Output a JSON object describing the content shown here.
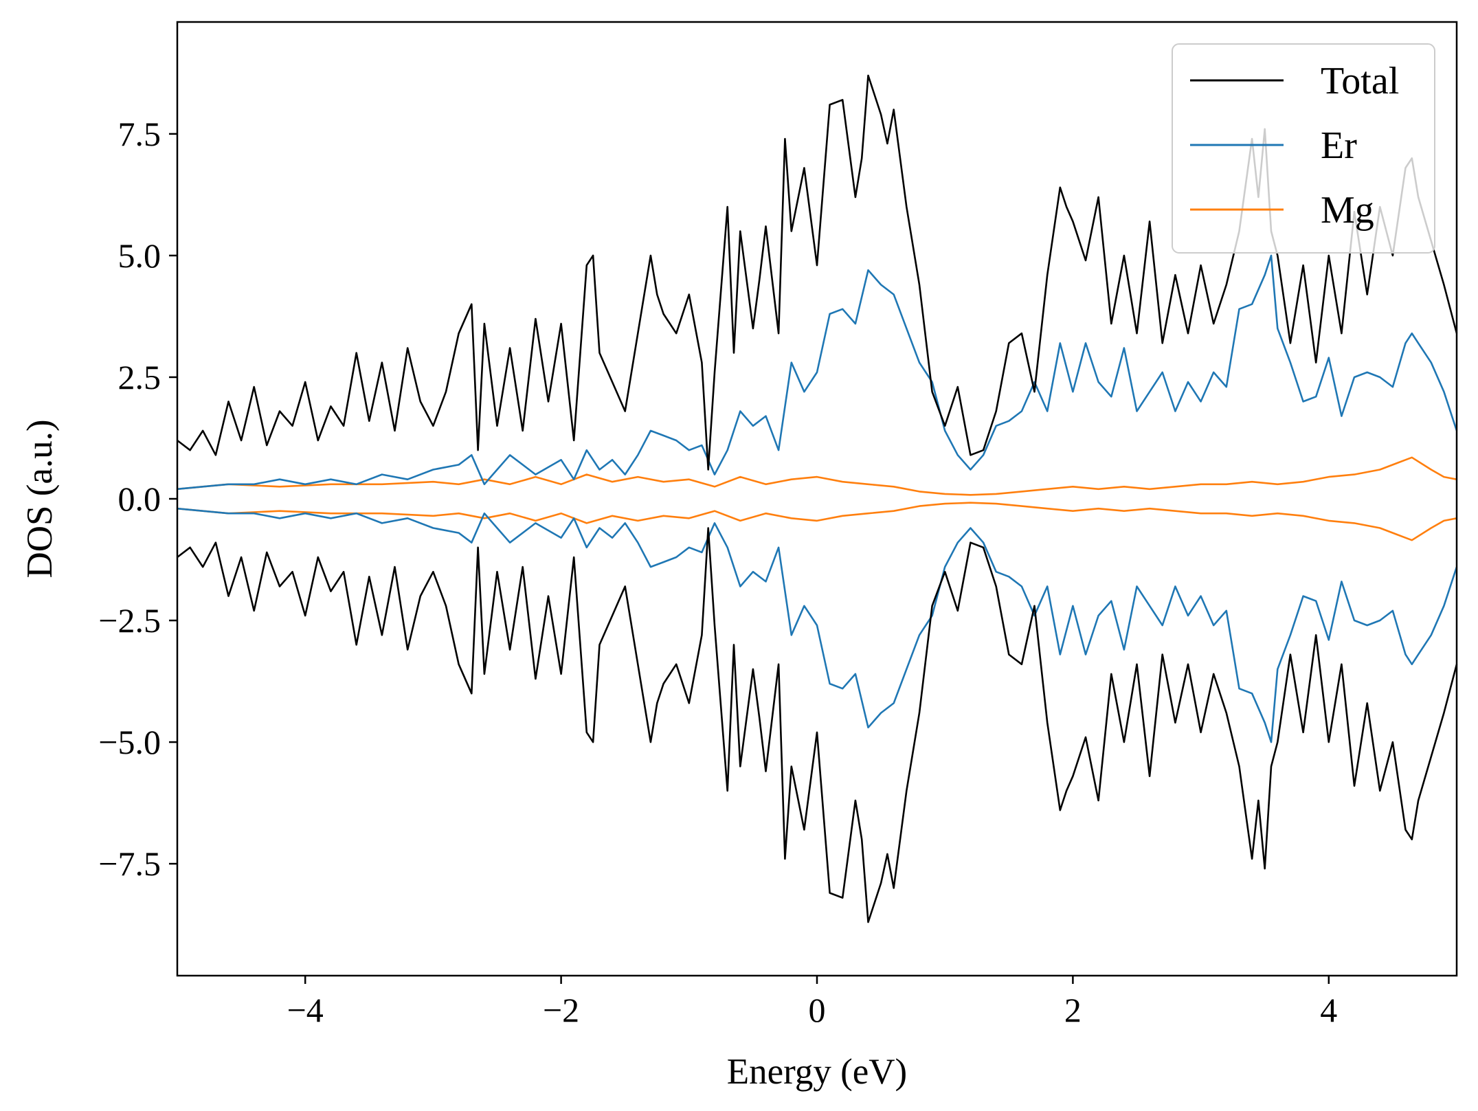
{
  "chart_data": {
    "type": "line",
    "xlabel": "Energy (eV)",
    "ylabel": "DOS (a.u.)",
    "xlim": [
      -5,
      5
    ],
    "ylim": [
      -9.8,
      9.8
    ],
    "xticks": [
      -4,
      -2,
      0,
      2,
      4
    ],
    "xtick_labels": [
      "−4",
      "−2",
      "0",
      "2",
      "4"
    ],
    "yticks": [
      -7.5,
      -5.0,
      -2.5,
      0.0,
      2.5,
      5.0,
      7.5
    ],
    "ytick_labels": [
      "−7.5",
      "−5.0",
      "−2.5",
      "0.0",
      "2.5",
      "5.0",
      "7.5"
    ],
    "grid": false,
    "legend_position": "top-right",
    "mirrored_spin_down": true,
    "series": [
      {
        "name": "Total",
        "color": "#000000",
        "x": [
          -5.0,
          -4.9,
          -4.8,
          -4.7,
          -4.6,
          -4.5,
          -4.4,
          -4.3,
          -4.2,
          -4.1,
          -4.0,
          -3.9,
          -3.8,
          -3.7,
          -3.6,
          -3.5,
          -3.4,
          -3.3,
          -3.2,
          -3.1,
          -3.0,
          -2.9,
          -2.8,
          -2.7,
          -2.65,
          -2.6,
          -2.5,
          -2.4,
          -2.3,
          -2.2,
          -2.1,
          -2.0,
          -1.9,
          -1.8,
          -1.75,
          -1.7,
          -1.6,
          -1.5,
          -1.4,
          -1.3,
          -1.25,
          -1.2,
          -1.1,
          -1.0,
          -0.9,
          -0.85,
          -0.8,
          -0.7,
          -0.65,
          -0.6,
          -0.5,
          -0.45,
          -0.4,
          -0.3,
          -0.25,
          -0.2,
          -0.1,
          0.0,
          0.1,
          0.2,
          0.3,
          0.35,
          0.4,
          0.5,
          0.55,
          0.6,
          0.7,
          0.8,
          0.9,
          1.0,
          1.1,
          1.2,
          1.3,
          1.4,
          1.5,
          1.6,
          1.7,
          1.8,
          1.9,
          1.95,
          2.0,
          2.1,
          2.2,
          2.3,
          2.4,
          2.5,
          2.6,
          2.7,
          2.8,
          2.9,
          3.0,
          3.1,
          3.2,
          3.3,
          3.4,
          3.45,
          3.5,
          3.55,
          3.6,
          3.7,
          3.8,
          3.9,
          4.0,
          4.1,
          4.2,
          4.3,
          4.4,
          4.5,
          4.6,
          4.65,
          4.7,
          4.8,
          4.9,
          5.0
        ],
        "y": [
          1.2,
          1.0,
          1.4,
          0.9,
          2.0,
          1.2,
          2.3,
          1.1,
          1.8,
          1.5,
          2.4,
          1.2,
          1.9,
          1.5,
          3.0,
          1.6,
          2.8,
          1.4,
          3.1,
          2.0,
          1.5,
          2.2,
          3.4,
          4.0,
          1.0,
          3.6,
          1.5,
          3.1,
          1.4,
          3.7,
          2.0,
          3.6,
          1.2,
          4.8,
          5.0,
          3.0,
          2.4,
          1.8,
          3.4,
          5.0,
          4.2,
          3.8,
          3.4,
          4.2,
          2.8,
          0.6,
          2.6,
          6.0,
          3.0,
          5.5,
          3.5,
          4.5,
          5.6,
          3.4,
          7.4,
          5.5,
          6.8,
          4.8,
          8.1,
          8.2,
          6.2,
          7.0,
          8.7,
          7.9,
          7.3,
          8.0,
          6.0,
          4.4,
          2.2,
          1.5,
          2.3,
          0.9,
          1.0,
          1.8,
          3.2,
          3.4,
          2.2,
          4.6,
          6.4,
          6.0,
          5.7,
          4.9,
          6.2,
          3.6,
          5.0,
          3.4,
          5.7,
          3.2,
          4.6,
          3.4,
          4.8,
          3.6,
          4.4,
          5.5,
          7.4,
          6.2,
          7.6,
          5.5,
          5.0,
          3.2,
          4.8,
          2.8,
          5.0,
          3.4,
          5.9,
          4.2,
          6.0,
          5.0,
          6.8,
          7.0,
          6.2,
          5.3,
          4.4,
          3.4
        ]
      },
      {
        "name": "Er",
        "color": "#1f77b4",
        "x": [
          -5.0,
          -4.8,
          -4.6,
          -4.4,
          -4.2,
          -4.0,
          -3.8,
          -3.6,
          -3.4,
          -3.2,
          -3.0,
          -2.8,
          -2.7,
          -2.6,
          -2.5,
          -2.4,
          -2.2,
          -2.0,
          -1.9,
          -1.8,
          -1.7,
          -1.6,
          -1.5,
          -1.4,
          -1.3,
          -1.2,
          -1.1,
          -1.0,
          -0.9,
          -0.8,
          -0.7,
          -0.6,
          -0.5,
          -0.4,
          -0.3,
          -0.2,
          -0.1,
          0.0,
          0.1,
          0.2,
          0.3,
          0.4,
          0.5,
          0.6,
          0.7,
          0.8,
          0.9,
          1.0,
          1.1,
          1.2,
          1.3,
          1.4,
          1.5,
          1.6,
          1.7,
          1.8,
          1.9,
          2.0,
          2.1,
          2.2,
          2.3,
          2.4,
          2.5,
          2.6,
          2.7,
          2.8,
          2.9,
          3.0,
          3.1,
          3.2,
          3.3,
          3.4,
          3.5,
          3.55,
          3.6,
          3.7,
          3.8,
          3.9,
          4.0,
          4.1,
          4.2,
          4.3,
          4.4,
          4.5,
          4.6,
          4.65,
          4.7,
          4.8,
          4.9,
          5.0
        ],
        "y": [
          0.2,
          0.25,
          0.3,
          0.3,
          0.4,
          0.3,
          0.4,
          0.3,
          0.5,
          0.4,
          0.6,
          0.7,
          0.9,
          0.3,
          0.6,
          0.9,
          0.5,
          0.8,
          0.4,
          1.0,
          0.6,
          0.8,
          0.5,
          0.9,
          1.4,
          1.3,
          1.2,
          1.0,
          1.1,
          0.5,
          1.0,
          1.8,
          1.5,
          1.7,
          1.0,
          2.8,
          2.2,
          2.6,
          3.8,
          3.9,
          3.6,
          4.7,
          4.4,
          4.2,
          3.5,
          2.8,
          2.4,
          1.4,
          0.9,
          0.6,
          0.9,
          1.5,
          1.6,
          1.8,
          2.4,
          1.8,
          3.2,
          2.2,
          3.2,
          2.4,
          2.1,
          3.1,
          1.8,
          2.2,
          2.6,
          1.8,
          2.4,
          2.0,
          2.6,
          2.3,
          3.9,
          4.0,
          4.6,
          5.0,
          3.5,
          2.8,
          2.0,
          2.1,
          2.9,
          1.7,
          2.5,
          2.6,
          2.5,
          2.3,
          3.2,
          3.4,
          3.2,
          2.8,
          2.2,
          1.4
        ]
      },
      {
        "name": "Mg",
        "color": "#ff7f0e",
        "x": [
          -5.0,
          -4.6,
          -4.2,
          -3.8,
          -3.4,
          -3.0,
          -2.8,
          -2.6,
          -2.4,
          -2.2,
          -2.0,
          -1.8,
          -1.6,
          -1.4,
          -1.2,
          -1.0,
          -0.8,
          -0.6,
          -0.4,
          -0.2,
          0.0,
          0.2,
          0.4,
          0.6,
          0.8,
          1.0,
          1.2,
          1.4,
          1.6,
          1.8,
          2.0,
          2.2,
          2.4,
          2.6,
          2.8,
          3.0,
          3.2,
          3.4,
          3.6,
          3.8,
          4.0,
          4.2,
          4.4,
          4.6,
          4.65,
          4.8,
          4.9,
          5.0
        ],
        "y": [
          0.2,
          0.3,
          0.25,
          0.3,
          0.3,
          0.35,
          0.3,
          0.4,
          0.3,
          0.45,
          0.3,
          0.5,
          0.35,
          0.45,
          0.35,
          0.4,
          0.25,
          0.45,
          0.3,
          0.4,
          0.45,
          0.35,
          0.3,
          0.25,
          0.15,
          0.1,
          0.08,
          0.1,
          0.15,
          0.2,
          0.25,
          0.2,
          0.25,
          0.2,
          0.25,
          0.3,
          0.3,
          0.35,
          0.3,
          0.35,
          0.45,
          0.5,
          0.6,
          0.8,
          0.85,
          0.6,
          0.45,
          0.4
        ]
      }
    ]
  }
}
